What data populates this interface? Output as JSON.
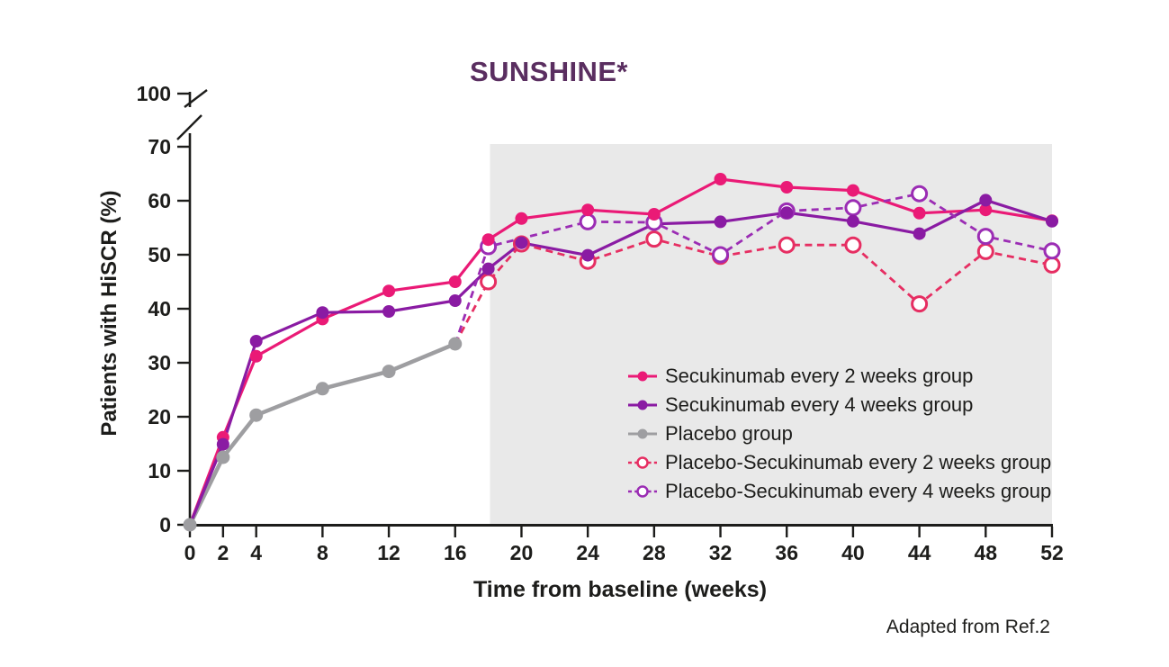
{
  "chart_data": {
    "type": "line",
    "title": "SUNSHINE*",
    "title_color": "#5a2e60",
    "xlabel": "Time from baseline (weeks)",
    "ylabel": "Patients with HiSCR (%)",
    "credit": "Adapted from Ref.2",
    "xlim": [
      0,
      52
    ],
    "ylim": [
      0,
      70
    ],
    "y_axis_break": true,
    "y_break_top_label": "100",
    "x_ticks": [
      0,
      2,
      4,
      8,
      12,
      16,
      20,
      24,
      28,
      32,
      36,
      40,
      44,
      48,
      52
    ],
    "y_ticks": [
      0,
      10,
      20,
      30,
      40,
      50,
      60,
      70
    ],
    "grid": false,
    "legend_position": "inside-right",
    "shaded_region": {
      "x_start": 18.1,
      "x_end": 52,
      "y_top": 70.5,
      "color": "#e9e9e9"
    },
    "axis_color": "#1d1d1b",
    "series": [
      {
        "name": "Secukinumab every 2 weeks group",
        "color": "#ea1a76",
        "line": "solid",
        "marker": "filled",
        "points": [
          [
            0,
            0
          ],
          [
            2,
            16.2
          ],
          [
            4,
            31.2
          ],
          [
            8,
            38.1
          ],
          [
            12,
            43.3
          ],
          [
            16,
            45.0
          ],
          [
            18,
            52.8
          ],
          [
            20,
            56.7
          ],
          [
            24,
            58.3
          ],
          [
            28,
            57.5
          ],
          [
            32,
            64.0
          ],
          [
            36,
            62.5
          ],
          [
            40,
            61.9
          ],
          [
            44,
            57.7
          ],
          [
            48,
            58.3
          ],
          [
            52,
            56.3
          ]
        ]
      },
      {
        "name": "Secukinumab every 4 weeks group",
        "color": "#8a1ba3",
        "line": "solid",
        "marker": "filled",
        "points": [
          [
            0,
            0
          ],
          [
            2,
            14.9
          ],
          [
            4,
            34.0
          ],
          [
            8,
            39.3
          ],
          [
            12,
            39.5
          ],
          [
            16,
            41.5
          ],
          [
            18,
            47.4
          ],
          [
            20,
            52.2
          ],
          [
            24,
            49.9
          ],
          [
            28,
            55.7,
            0
          ],
          [
            32,
            56.1
          ],
          [
            36,
            57.8
          ],
          [
            40,
            56.2
          ],
          [
            44,
            53.9
          ],
          [
            48,
            60.1
          ],
          [
            52,
            56.2
          ]
        ]
      },
      {
        "name": "Placebo group",
        "color": "#9e9ea1",
        "line": "solid",
        "marker": "filled",
        "points": [
          [
            0,
            0
          ],
          [
            2,
            12.5
          ],
          [
            4,
            20.3
          ],
          [
            8,
            25.2
          ],
          [
            12,
            28.4
          ],
          [
            16,
            33.5
          ]
        ]
      },
      {
        "name": "Placebo-Secukinumab every 2 weeks group",
        "color": "#e62e62",
        "line": "dashed",
        "marker": "open",
        "points": [
          [
            16,
            33.5,
            0
          ],
          [
            18,
            45.0
          ],
          [
            20,
            52.0
          ],
          [
            24,
            48.8
          ],
          [
            28,
            52.9
          ],
          [
            32,
            49.7
          ],
          [
            36,
            51.8
          ],
          [
            40,
            51.8
          ],
          [
            44,
            40.9
          ],
          [
            48,
            50.6
          ],
          [
            52,
            48.1
          ]
        ]
      },
      {
        "name": "Placebo-Secukinumab every 4 weeks group",
        "color": "#9b2db4",
        "line": "dashed",
        "marker": "open",
        "points": [
          [
            16,
            33.5,
            0
          ],
          [
            18,
            51.5
          ],
          [
            24,
            56.1
          ],
          [
            28,
            56.0
          ],
          [
            32,
            50.0
          ],
          [
            36,
            58.1
          ],
          [
            40,
            58.7
          ],
          [
            44,
            61.3
          ],
          [
            48,
            53.4
          ],
          [
            52,
            50.7
          ]
        ]
      }
    ]
  }
}
